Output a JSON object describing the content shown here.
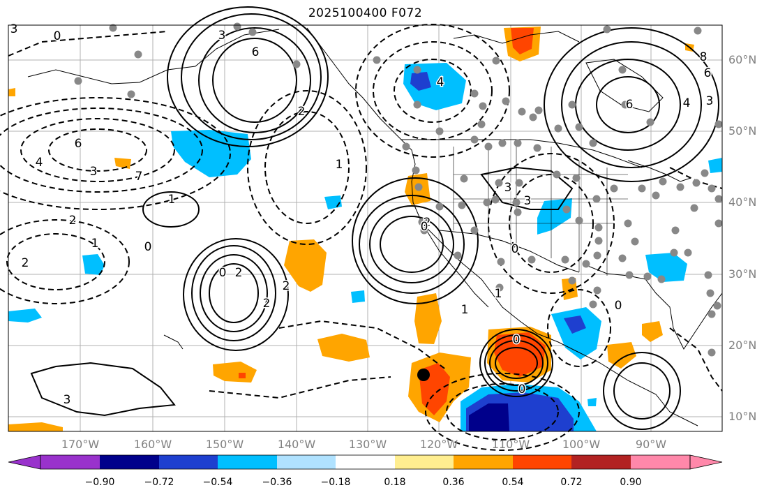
{
  "title": "2025100400 F072",
  "map": {
    "lat_labels": [
      "60°N",
      "50°N",
      "40°N",
      "30°N",
      "20°N",
      "10°N"
    ],
    "lon_labels": [
      "170°W",
      "160°W",
      "150°W",
      "140°W",
      "130°W",
      "120°W",
      "110°W",
      "100°W",
      "90°W"
    ],
    "contour_labels": [
      "3",
      "0",
      "3",
      "6",
      "8",
      "6",
      "4",
      "6",
      "3",
      "4",
      "2",
      "6",
      "3",
      "4",
      "7",
      "1",
      "2",
      "1",
      "0",
      "2",
      "2",
      "0",
      "2",
      "2",
      "1",
      "2",
      "0",
      "3",
      "3",
      "0",
      "1",
      "0",
      "1",
      "0",
      "0",
      "3"
    ],
    "colors": {
      "contour": "#000000",
      "land_outline": "#000000",
      "grid": "#b0b0b0",
      "marker_storm": "#000000",
      "marker_station": "#888888"
    }
  },
  "colorbar": {
    "tick_labels": [
      "−0.90",
      "−0.72",
      "−0.54",
      "−0.36",
      "−0.18",
      "0.18",
      "0.36",
      "0.54",
      "0.72",
      "0.90"
    ],
    "colors": [
      "#9932cc",
      "#00008b",
      "#1e3fcf",
      "#00bfff",
      "#b0e2ff",
      "#ffffff",
      "#ffee90",
      "#ffa500",
      "#ff4500",
      "#b22222",
      "#ff88aa"
    ]
  }
}
